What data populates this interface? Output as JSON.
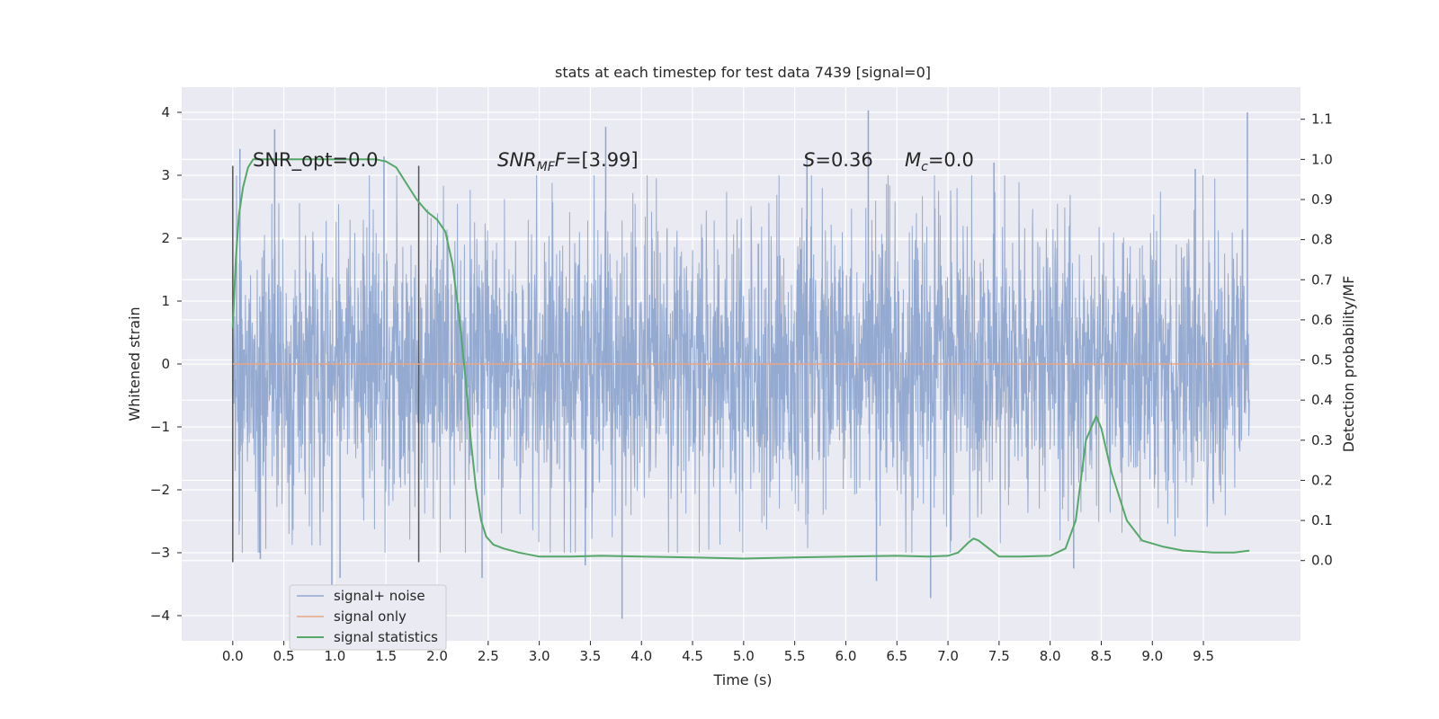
{
  "chart_data": {
    "type": "line",
    "title": "stats at each timestep for test data 7439 [signal=0]",
    "xlabel": "Time (s)",
    "ylabel": "Whitened strain",
    "y2label": "Detection probability/MF",
    "xlim": [
      -0.5,
      10.45
    ],
    "ylim": [
      -4.4,
      4.4
    ],
    "y2lim": [
      -0.2,
      1.18
    ],
    "grid": true,
    "legend_position": "bottom-left",
    "x_ticks": [
      "0.0",
      "0.5",
      "1.0",
      "1.5",
      "2.0",
      "2.5",
      "3.0",
      "3.5",
      "4.0",
      "4.5",
      "5.0",
      "5.5",
      "6.0",
      "6.5",
      "7.0",
      "7.5",
      "8.0",
      "8.5",
      "9.0",
      "9.5"
    ],
    "x_tick_values": [
      0,
      0.5,
      1,
      1.5,
      2,
      2.5,
      3,
      3.5,
      4,
      4.5,
      5,
      5.5,
      6,
      6.5,
      7,
      7.5,
      8,
      8.5,
      9,
      9.5
    ],
    "y_ticks": [
      "4",
      "3",
      "2",
      "1",
      "0",
      "−1",
      "−2",
      "−3",
      "−4"
    ],
    "y_tick_values": [
      4,
      3,
      2,
      1,
      0,
      -1,
      -2,
      -3,
      -4
    ],
    "y2_ticks": [
      "1.1",
      "1.0",
      "0.9",
      "0.8",
      "0.7",
      "0.6",
      "0.5",
      "0.4",
      "0.3",
      "0.2",
      "0.1",
      "0.0"
    ],
    "y2_tick_values": [
      1.1,
      1.0,
      0.9,
      0.8,
      0.7,
      0.6,
      0.5,
      0.4,
      0.3,
      0.2,
      0.1,
      0.0
    ],
    "annotations": {
      "snr_opt": "SNR_opt=0.0",
      "snr_mf_prefix": "SNR",
      "snr_mf_sub": "MF",
      "snr_mf_suffix": "=[3.99]",
      "s_label": "S",
      "s_value": "=0.36",
      "mc_label": "M",
      "mc_sub": "c",
      "mc_value": "=0.0"
    },
    "vlines": [
      0.0,
      1.82
    ],
    "vline_range": [
      -3.15,
      3.15
    ],
    "series": [
      {
        "name": "signal+ noise",
        "color": "#8fa6cf",
        "axis": "left",
        "x_range": [
          0,
          9.95
        ],
        "amplitude_typical": 1.3,
        "noise_spikes": [
          {
            "x": 0.07,
            "y": 3.42
          },
          {
            "x": 0.41,
            "y": 3.73
          },
          {
            "x": 0.27,
            "y": -3.1
          },
          {
            "x": 1.05,
            "y": -3.4
          },
          {
            "x": 1.48,
            "y": 3.3
          },
          {
            "x": 0.97,
            "y": -3.6
          },
          {
            "x": 2.44,
            "y": -3.4
          },
          {
            "x": 3.65,
            "y": 3.77
          },
          {
            "x": 3.81,
            "y": -4.05
          },
          {
            "x": 6.22,
            "y": 4.03
          },
          {
            "x": 6.3,
            "y": -3.45
          },
          {
            "x": 6.83,
            "y": -3.72
          },
          {
            "x": 7.45,
            "y": 3.2
          },
          {
            "x": 9.93,
            "y": 4.0
          },
          {
            "x": 9.42,
            "y": 3.1
          },
          {
            "x": 3.45,
            "y": -3.2
          },
          {
            "x": 8.23,
            "y": -3.25
          },
          {
            "x": 5.62,
            "y": 3.3
          }
        ]
      },
      {
        "name": "signal only",
        "color": "#e8a686",
        "axis": "left",
        "x": [
          0,
          9.95
        ],
        "y": [
          0,
          0
        ]
      },
      {
        "name": "signal statistics",
        "color": "#55a868",
        "axis": "right",
        "x": [
          0.0,
          0.03,
          0.06,
          0.1,
          0.15,
          0.2,
          0.3,
          0.5,
          0.8,
          1.1,
          1.4,
          1.5,
          1.6,
          1.7,
          1.8,
          1.9,
          2.0,
          2.08,
          2.15,
          2.22,
          2.28,
          2.33,
          2.38,
          2.43,
          2.48,
          2.55,
          2.65,
          2.8,
          3.0,
          3.3,
          3.6,
          4.0,
          4.5,
          5.0,
          5.5,
          6.0,
          6.5,
          6.8,
          7.0,
          7.1,
          7.2,
          7.25,
          7.3,
          7.4,
          7.5,
          7.7,
          8.0,
          8.15,
          8.25,
          8.35,
          8.45,
          8.5,
          8.6,
          8.75,
          8.9,
          9.1,
          9.3,
          9.6,
          9.8,
          9.95
        ],
        "y": [
          0.58,
          0.75,
          0.86,
          0.93,
          0.98,
          1.0,
          1.0,
          1.0,
          1.0,
          1.0,
          1.0,
          0.995,
          0.98,
          0.94,
          0.9,
          0.87,
          0.85,
          0.82,
          0.74,
          0.6,
          0.45,
          0.3,
          0.18,
          0.1,
          0.06,
          0.04,
          0.03,
          0.02,
          0.01,
          0.01,
          0.012,
          0.01,
          0.008,
          0.005,
          0.008,
          0.01,
          0.012,
          0.01,
          0.012,
          0.02,
          0.045,
          0.055,
          0.05,
          0.03,
          0.01,
          0.01,
          0.012,
          0.03,
          0.1,
          0.3,
          0.36,
          0.33,
          0.22,
          0.1,
          0.05,
          0.035,
          0.025,
          0.02,
          0.02,
          0.025
        ]
      }
    ]
  }
}
